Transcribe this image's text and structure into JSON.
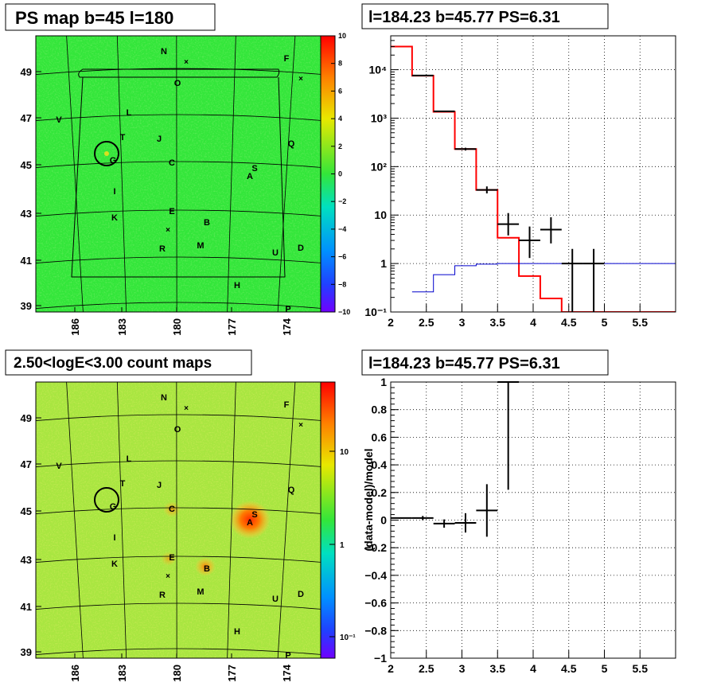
{
  "panels": {
    "ps_map": {
      "title": "PS map b=45 l=180"
    },
    "count_map": {
      "title": "2.50<logE<3.00 count maps"
    },
    "spectrum": {
      "title": "l=184.23 b=45.77 PS=6.31"
    },
    "residual": {
      "title": "l=184.23 b=45.77 PS=6.31"
    }
  },
  "map_axes": {
    "lon_ticks": [
      "186",
      "183",
      "180",
      "177",
      "174"
    ],
    "lat_ticks": [
      "49",
      "47",
      "45",
      "43",
      "41",
      "39"
    ]
  },
  "sources": [
    {
      "label": "N"
    },
    {
      "label": "F"
    },
    {
      "label": "O"
    },
    {
      "label": "V"
    },
    {
      "label": "L"
    },
    {
      "label": "T"
    },
    {
      "label": "J"
    },
    {
      "label": "Q"
    },
    {
      "label": "G"
    },
    {
      "label": "C"
    },
    {
      "label": "S"
    },
    {
      "label": "A"
    },
    {
      "label": "I"
    },
    {
      "label": "E"
    },
    {
      "label": "K"
    },
    {
      "label": "B"
    },
    {
      "label": "R"
    },
    {
      "label": "M"
    },
    {
      "label": "U"
    },
    {
      "label": "D"
    },
    {
      "label": "H"
    },
    {
      "label": "P"
    }
  ],
  "ps_colorbar_ticks": [
    "10",
    "8",
    "6",
    "4",
    "2",
    "0",
    "−2",
    "−4",
    "−6",
    "−8",
    "−10"
  ],
  "count_colorbar_ticks": [
    "10",
    "1",
    "10⁻¹"
  ],
  "colors": {
    "ps_background": "#33e63a",
    "count_background": "#a8e640",
    "model_line": "#ff0000",
    "data_marker": "#000000",
    "aux_line": "#0000cc"
  },
  "chart_data": [
    {
      "type": "heatmap",
      "title": "PS map b=45 l=180",
      "colorbar_range": [
        -10,
        10
      ],
      "xlim": [
        188,
        172
      ],
      "ylim": [
        38.7,
        50.5
      ],
      "description_values": "PS value near 0 across the field"
    },
    {
      "type": "heatmap",
      "title": "2.50<logE<3.00 count maps",
      "colorbar_scale": "log",
      "xlim": [
        188,
        172
      ],
      "ylim": [
        38.7,
        50.5
      ]
    },
    {
      "type": "line",
      "title": "l=184.23 b=45.77 PS=6.31",
      "xlim": [
        2,
        6
      ],
      "ylim": [
        0.1,
        50000
      ],
      "yscale": "log",
      "xticks": [
        "2",
        "2.5",
        "3",
        "3.5",
        "4",
        "4.5",
        "5",
        "5.5"
      ],
      "yticks": [
        "10⁻¹",
        "1",
        "10",
        "10²",
        "10³",
        "10⁴"
      ],
      "grid": true,
      "series": [
        {
          "style": "step",
          "color": "#ff0000",
          "edges": [
            2,
            2.3,
            2.6,
            2.9,
            3.2,
            3.5,
            3.8,
            4.1,
            4.4,
            6
          ],
          "values": [
            30000,
            7500,
            1350,
            230,
            33,
            3.4,
            0.55,
            0.19,
            0.1
          ]
        },
        {
          "style": "step",
          "color": "#0000cc",
          "edges": [
            2.3,
            2.6,
            2.9,
            3.2,
            3.5,
            6
          ],
          "values": [
            0.26,
            0.59,
            0.9,
            0.97,
            1.0
          ]
        },
        {
          "style": "errorbar",
          "color": "#000000",
          "points": [
            {
              "x": 2.45,
              "y": 7600,
              "xerr": 0.15,
              "ylo": 7400,
              "yhi": 7800
            },
            {
              "x": 2.75,
              "y": 1380,
              "xerr": 0.15,
              "ylo": 1340,
              "yhi": 1420
            },
            {
              "x": 3.05,
              "y": 230,
              "xerr": 0.15,
              "ylo": 215,
              "yhi": 245
            },
            {
              "x": 3.35,
              "y": 33,
              "xerr": 0.15,
              "ylo": 28,
              "yhi": 39
            },
            {
              "x": 3.65,
              "y": 6.5,
              "xerr": 0.15,
              "ylo": 3.8,
              "yhi": 11
            },
            {
              "x": 3.95,
              "y": 3.0,
              "xerr": 0.15,
              "ylo": 1.3,
              "yhi": 5.8
            },
            {
              "x": 4.25,
              "y": 5.0,
              "xerr": 0.15,
              "ylo": 2.6,
              "yhi": 9
            },
            {
              "x": 4.55,
              "y": 1.0,
              "xerr": 0.15,
              "ylo": 0.1,
              "yhi": 2.0
            },
            {
              "x": 4.85,
              "y": 1.0,
              "xerr": 0.15,
              "ylo": 0.1,
              "yhi": 2.0
            }
          ]
        }
      ]
    },
    {
      "type": "scatter",
      "title": "l=184.23 b=45.77 PS=6.31",
      "ylabel": "(data-model)/model",
      "xlim": [
        2,
        6
      ],
      "ylim": [
        -1,
        1
      ],
      "xticks": [
        "2",
        "2.5",
        "3",
        "3.5",
        "4",
        "4.5",
        "5",
        "5.5"
      ],
      "yticks": [
        "−1",
        "−0.8",
        "−0.6",
        "−0.4",
        "−0.2",
        "0",
        "0.2",
        "0.4",
        "0.6",
        "0.8",
        "1"
      ],
      "grid": true,
      "points": [
        {
          "x": 2.15,
          "y": 0.015,
          "xerr": 0.15,
          "yerr": 0.004
        },
        {
          "x": 2.45,
          "y": 0.015,
          "xerr": 0.15,
          "yerr": 0.015
        },
        {
          "x": 2.75,
          "y": -0.025,
          "xerr": 0.15,
          "yerr": 0.03
        },
        {
          "x": 3.05,
          "y": -0.02,
          "xerr": 0.15,
          "yerr": 0.07
        },
        {
          "x": 3.35,
          "y": 0.07,
          "xerr": 0.15,
          "yerr": 0.19
        },
        {
          "x": 3.65,
          "y": 1.0,
          "xerr": 0.15,
          "yerr": 0.78
        }
      ]
    }
  ]
}
